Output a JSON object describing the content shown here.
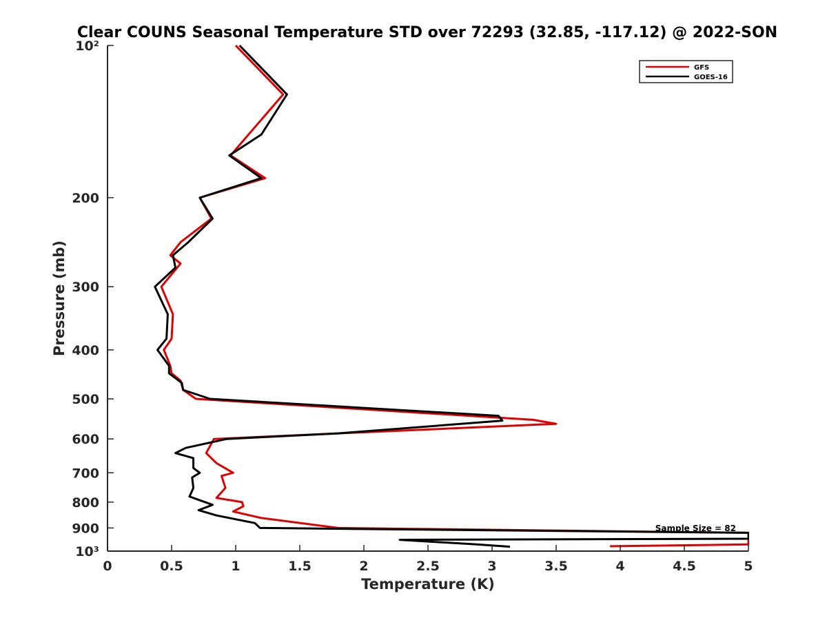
{
  "chart_data": {
    "type": "line",
    "title": "Clear COUNS Seasonal Temperature STD over 72293 (32.85, -117.12) @ 2022-SON",
    "xlabel": "Temperature (K)",
    "ylabel": "Pressure (mb)",
    "xlim": [
      0,
      5
    ],
    "ylim": [
      100,
      1000
    ],
    "y_scale": "log",
    "y_reversed": true,
    "x_ticks": [
      0,
      0.5,
      1,
      1.5,
      2,
      2.5,
      3,
      3.5,
      4,
      4.5,
      5
    ],
    "x_tick_labels": [
      "0",
      "0.5",
      "1",
      "1.5",
      "2",
      "2.5",
      "3",
      "3.5",
      "4",
      "4.5",
      "5"
    ],
    "y_ticks": [
      100,
      200,
      300,
      400,
      500,
      600,
      700,
      800,
      900,
      1000
    ],
    "y_tick_labels": [
      "10²",
      "200",
      "300",
      "400",
      "500",
      "600",
      "700",
      "800",
      "900",
      "10³"
    ],
    "grid": false,
    "legend_position": "top-right",
    "annotation": "Sample Size = 82",
    "series": [
      {
        "name": "GFS",
        "color": "#e00000",
        "points": [
          [
            1.0,
            100
          ],
          [
            1.37,
            125
          ],
          [
            1.1,
            150
          ],
          [
            0.96,
            165
          ],
          [
            1.23,
            183
          ],
          [
            0.72,
            200
          ],
          [
            0.81,
            220
          ],
          [
            0.57,
            245
          ],
          [
            0.49,
            260
          ],
          [
            0.57,
            270
          ],
          [
            0.42,
            300
          ],
          [
            0.51,
            340
          ],
          [
            0.5,
            380
          ],
          [
            0.44,
            400
          ],
          [
            0.49,
            430
          ],
          [
            0.5,
            445
          ],
          [
            0.57,
            460
          ],
          [
            0.59,
            480
          ],
          [
            0.69,
            500
          ],
          [
            3.32,
            550
          ],
          [
            3.5,
            560
          ],
          [
            1.8,
            585
          ],
          [
            0.83,
            600
          ],
          [
            0.77,
            640
          ],
          [
            0.85,
            670
          ],
          [
            0.98,
            700
          ],
          [
            0.89,
            710
          ],
          [
            0.92,
            750
          ],
          [
            0.85,
            785
          ],
          [
            1.05,
            800
          ],
          [
            1.06,
            815
          ],
          [
            0.98,
            835
          ],
          [
            1.2,
            860
          ],
          [
            1.8,
            900
          ],
          [
            5.0,
            920
          ],
          [
            5.0,
            970
          ],
          [
            3.92,
            978
          ]
        ]
      },
      {
        "name": "GOES-16",
        "color": "#000000",
        "points": [
          [
            1.03,
            100
          ],
          [
            1.4,
            125
          ],
          [
            1.2,
            150
          ],
          [
            0.95,
            165
          ],
          [
            1.2,
            183
          ],
          [
            0.72,
            200
          ],
          [
            0.82,
            220
          ],
          [
            0.63,
            245
          ],
          [
            0.51,
            260
          ],
          [
            0.53,
            275
          ],
          [
            0.37,
            300
          ],
          [
            0.47,
            340
          ],
          [
            0.46,
            380
          ],
          [
            0.39,
            400
          ],
          [
            0.48,
            430
          ],
          [
            0.48,
            445
          ],
          [
            0.58,
            465
          ],
          [
            0.59,
            480
          ],
          [
            0.8,
            500
          ],
          [
            3.05,
            540
          ],
          [
            3.08,
            552
          ],
          [
            1.8,
            585
          ],
          [
            0.93,
            600
          ],
          [
            0.61,
            625
          ],
          [
            0.53,
            640
          ],
          [
            0.67,
            655
          ],
          [
            0.67,
            685
          ],
          [
            0.72,
            700
          ],
          [
            0.66,
            715
          ],
          [
            0.67,
            750
          ],
          [
            0.64,
            780
          ],
          [
            0.82,
            810
          ],
          [
            0.71,
            830
          ],
          [
            0.85,
            850
          ],
          [
            1.15,
            880
          ],
          [
            1.19,
            900
          ],
          [
            5.0,
            920
          ],
          [
            5.0,
            945
          ],
          [
            2.28,
            950
          ],
          [
            2.88,
            970
          ],
          [
            3.14,
            980
          ]
        ]
      }
    ]
  }
}
